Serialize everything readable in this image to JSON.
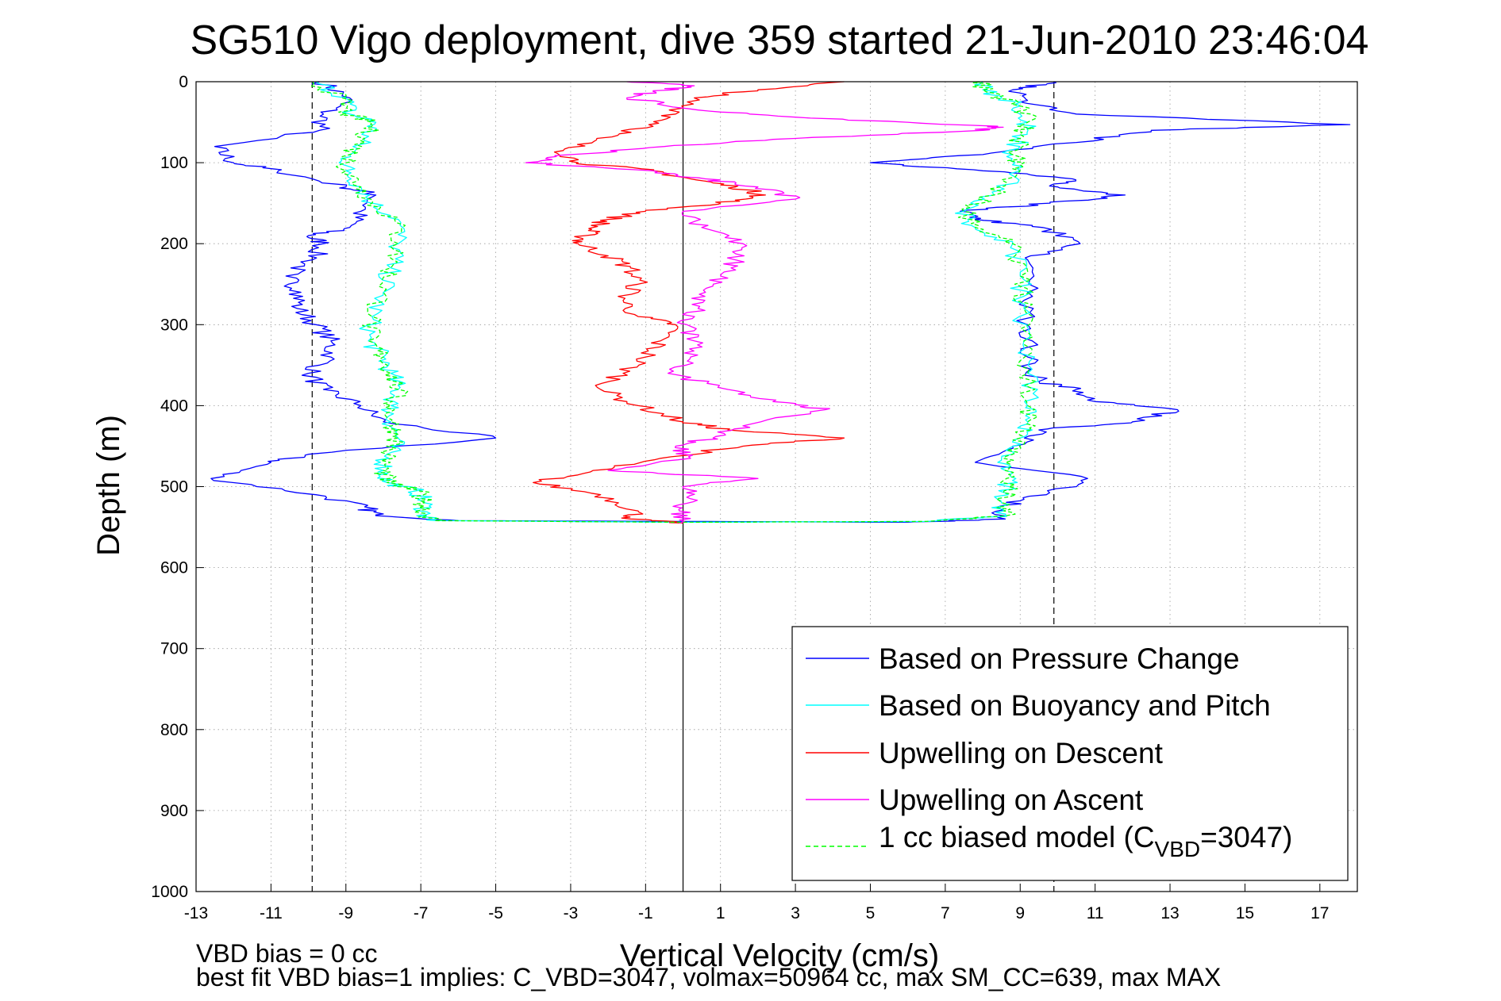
{
  "chart_data": {
    "type": "line",
    "title": "SG510 Vigo deployment, dive 359 started 21-Jun-2010 23:46:04",
    "xlabel": "Vertical Velocity (cm/s)",
    "ylabel": "Depth (m)",
    "xlim": [
      -13,
      18
    ],
    "ylim": [
      0,
      1000
    ],
    "y_reversed": true,
    "grid": true,
    "x_ticks": [
      -13,
      -11,
      -9,
      -7,
      -5,
      -3,
      -1,
      1,
      3,
      5,
      7,
      9,
      11,
      13,
      15,
      17
    ],
    "y_ticks": [
      0,
      100,
      200,
      300,
      400,
      500,
      600,
      700,
      800,
      900,
      1000
    ],
    "reference_lines": {
      "dashed_x": [
        -9.9,
        9.9
      ],
      "solid_x": [
        0
      ]
    },
    "legend_position": "bottom-right",
    "legend": [
      {
        "label": "Based on Pressure Change",
        "color": "#0000ff",
        "dash": false
      },
      {
        "label": "Based on Buoyancy and Pitch",
        "color": "#00ffff",
        "dash": false
      },
      {
        "label": "Upwelling on Descent",
        "color": "#ff0000",
        "dash": false
      },
      {
        "label": "Upwelling on Ascent",
        "color": "#ff00ff",
        "dash": false
      },
      {
        "label_prefix": "1 cc biased model (C",
        "label_sub": "VBD",
        "label_suffix": "=3047)",
        "color": "#00ff00",
        "dash": true
      }
    ],
    "series": [
      {
        "name": "Based on Pressure Change",
        "color": "#0000ff",
        "points": [
          [
            0,
            -9.7
          ],
          [
            20,
            -8.9
          ],
          [
            40,
            -9.6
          ],
          [
            60,
            -9.7
          ],
          [
            80,
            -12.5
          ],
          [
            100,
            -12.0
          ],
          [
            110,
            -10.8
          ],
          [
            130,
            -9.0
          ],
          [
            140,
            -8.2
          ],
          [
            160,
            -8.6
          ],
          [
            180,
            -8.9
          ],
          [
            190,
            -10.0
          ],
          [
            200,
            -9.6
          ],
          [
            220,
            -9.9
          ],
          [
            240,
            -10.6
          ],
          [
            260,
            -10.2
          ],
          [
            280,
            -10.3
          ],
          [
            300,
            -9.8
          ],
          [
            320,
            -9.4
          ],
          [
            340,
            -9.4
          ],
          [
            360,
            -10.0
          ],
          [
            380,
            -9.6
          ],
          [
            400,
            -8.6
          ],
          [
            420,
            -8.0
          ],
          [
            440,
            -5.0
          ],
          [
            460,
            -10.0
          ],
          [
            470,
            -11.0
          ],
          [
            490,
            -12.6
          ],
          [
            510,
            -9.8
          ],
          [
            525,
            -8.5
          ],
          [
            535,
            -8.2
          ],
          [
            542,
            -6.0
          ],
          [
            543,
            0.0
          ],
          [
            544,
            6.0
          ],
          [
            540,
            8.6
          ],
          [
            525,
            8.4
          ],
          [
            510,
            9.7
          ],
          [
            490,
            10.8
          ],
          [
            470,
            7.8
          ],
          [
            450,
            8.8
          ],
          [
            430,
            9.5
          ],
          [
            420,
            12.0
          ],
          [
            405,
            13.2
          ],
          [
            395,
            11.0
          ],
          [
            380,
            10.5
          ],
          [
            370,
            9.5
          ],
          [
            340,
            9.2
          ],
          [
            300,
            9.2
          ],
          [
            260,
            9.2
          ],
          [
            220,
            9.2
          ],
          [
            200,
            10.6
          ],
          [
            180,
            9.6
          ],
          [
            170,
            7.8
          ],
          [
            160,
            7.4
          ],
          [
            150,
            9.8
          ],
          [
            140,
            11.8
          ],
          [
            130,
            10.0
          ],
          [
            120,
            10.4
          ],
          [
            110,
            8.0
          ],
          [
            100,
            5.0
          ],
          [
            90,
            8.0
          ],
          [
            75,
            10.5
          ],
          [
            60,
            12.5
          ],
          [
            53,
            17.8
          ],
          [
            40,
            10.5
          ],
          [
            25,
            9.0
          ],
          [
            10,
            8.8
          ],
          [
            0,
            9.9
          ]
        ]
      },
      {
        "name": "Based on Buoyancy and Pitch",
        "color": "#00ffff",
        "points": [
          [
            0,
            -9.8
          ],
          [
            20,
            -9.0
          ],
          [
            40,
            -8.9
          ],
          [
            50,
            -8.2
          ],
          [
            70,
            -8.5
          ],
          [
            90,
            -8.9
          ],
          [
            110,
            -9.0
          ],
          [
            130,
            -8.6
          ],
          [
            150,
            -8.3
          ],
          [
            170,
            -7.6
          ],
          [
            200,
            -7.6
          ],
          [
            230,
            -7.8
          ],
          [
            260,
            -8.0
          ],
          [
            290,
            -8.3
          ],
          [
            320,
            -8.4
          ],
          [
            340,
            -8.0
          ],
          [
            360,
            -7.8
          ],
          [
            380,
            -7.6
          ],
          [
            400,
            -7.8
          ],
          [
            420,
            -7.8
          ],
          [
            440,
            -7.6
          ],
          [
            460,
            -7.9
          ],
          [
            480,
            -8.0
          ],
          [
            495,
            -7.9
          ],
          [
            505,
            -7.1
          ],
          [
            520,
            -6.9
          ],
          [
            535,
            -6.9
          ],
          [
            542,
            -6.6
          ],
          [
            544,
            0.0
          ],
          [
            543,
            6.5
          ],
          [
            536,
            8.6
          ],
          [
            520,
            8.5
          ],
          [
            500,
            8.7
          ],
          [
            480,
            8.6
          ],
          [
            460,
            8.8
          ],
          [
            440,
            9.0
          ],
          [
            420,
            9.2
          ],
          [
            400,
            9.2
          ],
          [
            360,
            9.2
          ],
          [
            320,
            9.1
          ],
          [
            280,
            9.1
          ],
          [
            240,
            9.0
          ],
          [
            200,
            8.8
          ],
          [
            180,
            7.8
          ],
          [
            160,
            7.5
          ],
          [
            140,
            8.3
          ],
          [
            110,
            9.0
          ],
          [
            90,
            8.8
          ],
          [
            70,
            9.0
          ],
          [
            50,
            9.2
          ],
          [
            30,
            9.0
          ],
          [
            10,
            8.0
          ],
          [
            0,
            8.0
          ]
        ]
      },
      {
        "name": "Upwelling on Descent",
        "color": "#ff0000",
        "points": [
          [
            0,
            4.3
          ],
          [
            10,
            2.0
          ],
          [
            20,
            0.3
          ],
          [
            40,
            -0.2
          ],
          [
            55,
            -0.8
          ],
          [
            70,
            -2.3
          ],
          [
            85,
            -3.2
          ],
          [
            100,
            -2.8
          ],
          [
            110,
            -0.8
          ],
          [
            120,
            0.2
          ],
          [
            130,
            1.4
          ],
          [
            140,
            2.2
          ],
          [
            150,
            1.0
          ],
          [
            160,
            -1.0
          ],
          [
            170,
            -2.0
          ],
          [
            180,
            -2.4
          ],
          [
            190,
            -2.6
          ],
          [
            200,
            -2.8
          ],
          [
            215,
            -2.0
          ],
          [
            230,
            -1.4
          ],
          [
            250,
            -1.2
          ],
          [
            270,
            -1.6
          ],
          [
            290,
            -1.2
          ],
          [
            300,
            -0.2
          ],
          [
            320,
            -0.6
          ],
          [
            340,
            -1.0
          ],
          [
            360,
            -1.6
          ],
          [
            380,
            -2.2
          ],
          [
            400,
            -1.2
          ],
          [
            420,
            0.0
          ],
          [
            430,
            1.2
          ],
          [
            440,
            4.3
          ],
          [
            450,
            1.6
          ],
          [
            465,
            -0.6
          ],
          [
            480,
            -2.4
          ],
          [
            495,
            -4.0
          ],
          [
            510,
            -2.2
          ],
          [
            530,
            -1.2
          ],
          [
            540,
            -1.4
          ],
          [
            545,
            0.0
          ]
        ]
      },
      {
        "name": "Upwelling on Ascent",
        "color": "#ff00ff",
        "points": [
          [
            545,
            -0.1
          ],
          [
            530,
            -0.1
          ],
          [
            515,
            0.2
          ],
          [
            500,
            0.0
          ],
          [
            490,
            2.0
          ],
          [
            480,
            -2.0
          ],
          [
            465,
            0.2
          ],
          [
            450,
            -0.2
          ],
          [
            440,
            0.8
          ],
          [
            425,
            1.6
          ],
          [
            405,
            3.8
          ],
          [
            395,
            2.4
          ],
          [
            380,
            1.2
          ],
          [
            360,
            -0.4
          ],
          [
            340,
            0.2
          ],
          [
            320,
            0.3
          ],
          [
            300,
            0.1
          ],
          [
            280,
            0.4
          ],
          [
            260,
            0.6
          ],
          [
            240,
            1.0
          ],
          [
            220,
            1.4
          ],
          [
            200,
            1.6
          ],
          [
            180,
            0.5
          ],
          [
            160,
            0.0
          ],
          [
            145,
            3.0
          ],
          [
            130,
            2.0
          ],
          [
            120,
            0.6
          ],
          [
            110,
            -0.8
          ],
          [
            100,
            -4.2
          ],
          [
            90,
            -3.0
          ],
          [
            80,
            -0.5
          ],
          [
            70,
            3.0
          ],
          [
            60,
            8.0
          ],
          [
            55,
            8.4
          ],
          [
            45,
            3.4
          ],
          [
            35,
            0.4
          ],
          [
            20,
            -1.5
          ],
          [
            12,
            -0.8
          ],
          [
            5,
            0.3
          ],
          [
            0,
            -1.5
          ]
        ]
      },
      {
        "name": "1 cc biased model (CVBD=3047)",
        "color": "#00ff00",
        "dashed": true,
        "points": [
          [
            0,
            -9.9
          ],
          [
            20,
            -9.1
          ],
          [
            40,
            -9.0
          ],
          [
            50,
            -8.3
          ],
          [
            70,
            -8.5
          ],
          [
            90,
            -8.9
          ],
          [
            110,
            -9.0
          ],
          [
            130,
            -8.6
          ],
          [
            150,
            -8.3
          ],
          [
            170,
            -7.7
          ],
          [
            200,
            -7.6
          ],
          [
            230,
            -7.8
          ],
          [
            260,
            -8.0
          ],
          [
            290,
            -8.3
          ],
          [
            320,
            -8.4
          ],
          [
            340,
            -8.0
          ],
          [
            360,
            -7.8
          ],
          [
            380,
            -7.6
          ],
          [
            400,
            -7.8
          ],
          [
            420,
            -7.8
          ],
          [
            440,
            -7.6
          ],
          [
            460,
            -7.9
          ],
          [
            480,
            -8.0
          ],
          [
            495,
            -7.9
          ],
          [
            505,
            -7.1
          ],
          [
            520,
            -6.9
          ],
          [
            535,
            -6.9
          ],
          [
            542,
            -6.6
          ],
          [
            544,
            0.0
          ],
          [
            543,
            6.5
          ],
          [
            536,
            8.6
          ],
          [
            520,
            8.5
          ],
          [
            500,
            8.7
          ],
          [
            480,
            8.6
          ],
          [
            460,
            8.8
          ],
          [
            440,
            9.0
          ],
          [
            420,
            9.2
          ],
          [
            400,
            9.2
          ],
          [
            360,
            9.2
          ],
          [
            320,
            9.1
          ],
          [
            280,
            9.1
          ],
          [
            240,
            9.0
          ],
          [
            200,
            8.8
          ],
          [
            180,
            7.8
          ],
          [
            160,
            7.5
          ],
          [
            140,
            8.3
          ],
          [
            110,
            9.0
          ],
          [
            90,
            8.8
          ],
          [
            70,
            9.0
          ],
          [
            50,
            9.2
          ],
          [
            30,
            9.0
          ],
          [
            10,
            8.0
          ],
          [
            0,
            8.0
          ]
        ]
      }
    ]
  },
  "footer": {
    "line1": "VBD bias = 0 cc",
    "line2": "best fit VBD bias=1 implies: C_VBD=3047, volmax=50964 cc, max SM_CC=639, max MAX"
  }
}
